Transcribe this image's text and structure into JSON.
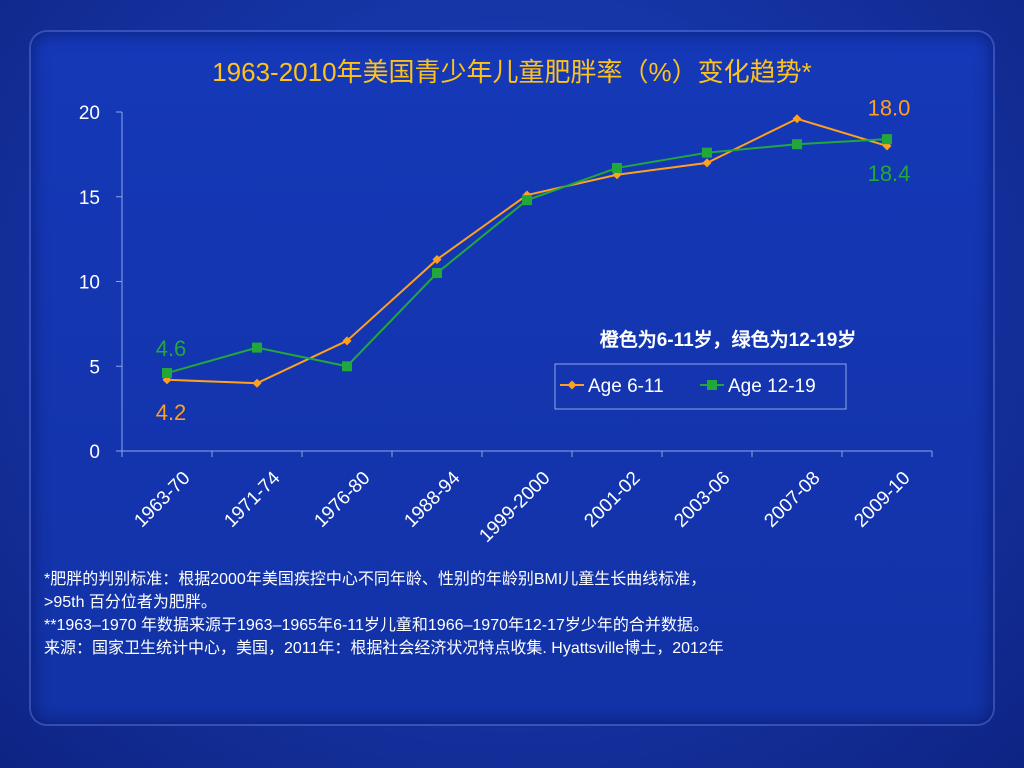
{
  "slide": {
    "title": "1963-2010年美国青少年儿童肥胖率（%）变化趋势*",
    "note_in_chart": "橙色为6-11岁，绿色为12-19岁",
    "footnotes": [
      "*肥胖的判别标准：根据2000年美国疾控中心不同年龄、性别的年龄别BMI儿童生长曲线标准，",
      ">95th 百分位者为肥胖。",
      "**1963–1970 年数据来源于1963–1965年6-11岁儿童和1966–1970年12-17岁少年的合并数据。",
      "来源：国家卫生统计中心，美国，2011年：根据社会经济状况特点收集. Hyattsville博士，2012年"
    ]
  },
  "colors": {
    "orange": "#ffa020",
    "green": "#22a83a",
    "title": "#ffc21a",
    "axis_text": "#ffffff"
  },
  "chart_data": {
    "type": "line",
    "categories": [
      "1963-70",
      "1971-74",
      "1976-80",
      "1988-94",
      "1999-2000",
      "2001-02",
      "2003-06",
      "2007-08",
      "2009-10"
    ],
    "series": [
      {
        "name": "Age 6-11",
        "values": [
          4.2,
          4.0,
          6.5,
          11.3,
          15.1,
          16.3,
          17.0,
          19.6,
          18.0
        ]
      },
      {
        "name": "Age 12-19",
        "values": [
          4.6,
          6.1,
          5.0,
          10.5,
          14.8,
          16.7,
          17.6,
          18.1,
          18.4
        ]
      }
    ],
    "ylim": [
      0,
      20
    ],
    "yticks": [
      "0",
      "5",
      "10",
      "15",
      "20"
    ],
    "data_labels": {
      "first_age_6_11": "4.2",
      "first_age_12_19": "4.6",
      "last_age_6_11": "18.0",
      "last_age_12_19": "18.4"
    },
    "legend": "inside-right",
    "grid": false
  }
}
